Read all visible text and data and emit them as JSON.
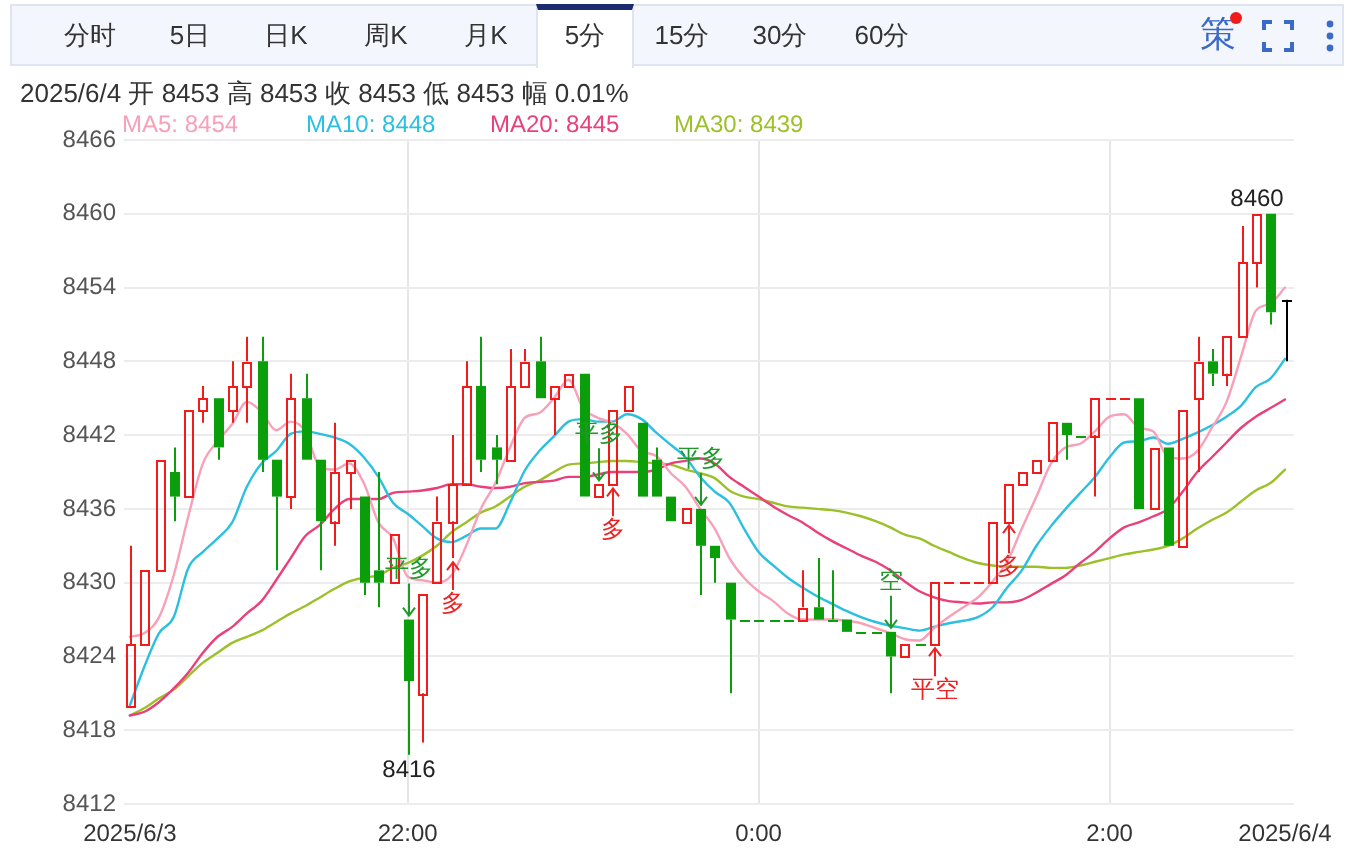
{
  "chart_data": {
    "type": "candlestick",
    "title": "2025/6/4 开 8453 高 8453 收 8453 低 8453 幅 0.01%",
    "x": [
      "2025-06-03T20:25",
      "2025-06-03T20:30",
      "2025-06-03T20:35",
      "2025-06-03T20:40",
      "2025-06-03T20:45",
      "2025-06-03T20:50",
      "2025-06-03T20:55",
      "2025-06-03T21:00",
      "2025-06-03T21:05",
      "2025-06-03T21:10",
      "2025-06-03T21:15",
      "2025-06-03T21:20",
      "2025-06-03T21:25",
      "2025-06-03T21:30",
      "2025-06-03T21:35",
      "2025-06-03T21:40",
      "2025-06-03T21:45",
      "2025-06-03T21:50",
      "2025-06-03T21:55",
      "2025-06-03T22:00",
      "2025-06-03T22:05",
      "2025-06-03T22:10",
      "2025-06-03T22:15",
      "2025-06-03T22:20",
      "2025-06-03T22:25",
      "2025-06-03T22:30",
      "2025-06-03T22:35",
      "2025-06-03T22:40",
      "2025-06-03T22:45",
      "2025-06-03T22:50",
      "2025-06-03T22:55",
      "2025-06-03T23:00",
      "2025-06-03T23:05",
      "2025-06-03T23:10",
      "2025-06-03T23:15",
      "2025-06-03T23:20",
      "2025-06-03T23:25",
      "2025-06-03T23:30",
      "2025-06-03T23:35",
      "2025-06-03T23:40",
      "2025-06-03T23:45",
      "2025-06-03T23:50",
      "2025-06-03T23:55",
      "2025-06-04T00:00",
      "2025-06-04T00:05",
      "2025-06-04T00:10",
      "2025-06-04T00:15",
      "2025-06-04T00:20",
      "2025-06-04T00:25",
      "2025-06-04T00:30",
      "2025-06-04T00:35",
      "2025-06-04T00:40",
      "2025-06-04T00:45",
      "2025-06-04T00:50",
      "2025-06-04T00:55",
      "2025-06-04T01:00",
      "2025-06-04T01:05",
      "2025-06-04T01:10",
      "2025-06-04T01:15",
      "2025-06-04T01:20",
      "2025-06-04T01:25",
      "2025-06-04T01:30",
      "2025-06-04T01:35",
      "2025-06-04T01:40",
      "2025-06-04T01:45",
      "2025-06-04T01:50",
      "2025-06-04T01:55",
      "2025-06-04T02:00",
      "2025-06-04T02:05",
      "2025-06-04T02:10",
      "2025-06-04T02:15",
      "2025-06-04T02:20",
      "2025-06-04T02:25",
      "2025-06-04T02:30",
      "2025-06-04T02:35",
      "2025-06-04T02:40",
      "2025-06-04T02:45",
      "2025-06-04T02:50",
      "2025-06-04T02:55",
      "2025-06-04T03:00"
    ],
    "xlim": [
      "2025-06-03T20:23",
      "2025-06-04T03:03"
    ],
    "xticks": [
      {
        "value": "2025-06-03T20:25",
        "label": "2025/6/3"
      },
      {
        "value": "2025-06-03T22:00",
        "label": "22:00"
      },
      {
        "value": "2025-06-04T00:00",
        "label": "0:00"
      },
      {
        "value": "2025-06-04T02:00",
        "label": "2:00"
      },
      {
        "value": "2025-06-04T03:00",
        "label": "2025/6/4"
      }
    ],
    "ylim": [
      8412,
      8466
    ],
    "yticks": [
      8412,
      8418,
      8424,
      8430,
      8436,
      8442,
      8448,
      8454,
      8460,
      8466
    ],
    "ohlc": [
      [
        8420,
        8433,
        8420,
        8425
      ],
      [
        8425,
        8431,
        8425,
        8431
      ],
      [
        8431,
        8440,
        8431,
        8440
      ],
      [
        8439,
        8441,
        8435,
        8437
      ],
      [
        8437,
        8444,
        8437,
        8444
      ],
      [
        8444,
        8446,
        8443,
        8445
      ],
      [
        8445,
        8445,
        8440,
        8441
      ],
      [
        8444,
        8448,
        8443,
        8446
      ],
      [
        8446,
        8450,
        8443,
        8448
      ],
      [
        8448,
        8450,
        8439,
        8440
      ],
      [
        8440,
        8440,
        8431,
        8437
      ],
      [
        8437,
        8447,
        8436,
        8445
      ],
      [
        8445,
        8447,
        8440,
        8440
      ],
      [
        8440,
        8440,
        8431,
        8435
      ],
      [
        8435,
        8443,
        8433,
        8439
      ],
      [
        8439,
        8440,
        8436,
        8440
      ],
      [
        8437,
        8437,
        8429,
        8430
      ],
      [
        8431,
        8439,
        8428,
        8430
      ],
      [
        8430,
        8434,
        8430,
        8434
      ],
      [
        8427,
        8427,
        8416,
        8422
      ],
      [
        8421,
        8429,
        8417,
        8429
      ],
      [
        8430,
        8437,
        8430,
        8435
      ],
      [
        8435,
        8442,
        8432,
        8438
      ],
      [
        8438,
        8448,
        8438,
        8446
      ],
      [
        8446,
        8450,
        8439,
        8440
      ],
      [
        8441,
        8442,
        8438,
        8440
      ],
      [
        8440,
        8449,
        8440,
        8446
      ],
      [
        8446,
        8449,
        8446,
        8448
      ],
      [
        8448,
        8450,
        8445,
        8445
      ],
      [
        8445,
        8446,
        8442,
        8446
      ],
      [
        8446,
        8447,
        8446,
        8447
      ],
      [
        8447,
        8447,
        8437,
        8437
      ],
      [
        8437,
        8438,
        8437,
        8438
      ],
      [
        8438,
        8444,
        8438,
        8444
      ],
      [
        8444,
        8446,
        8444,
        8446
      ],
      [
        8443,
        8443,
        8437,
        8437
      ],
      [
        8440,
        8441,
        8437,
        8437
      ],
      [
        8437,
        8437,
        8435,
        8435
      ],
      [
        8435,
        8436,
        8435,
        8436
      ],
      [
        8436,
        8436,
        8429,
        8433
      ],
      [
        8433,
        8433,
        8430,
        8432
      ],
      [
        8430,
        8430,
        8421,
        8427
      ],
      [
        8427,
        8427,
        8427,
        8427
      ],
      [
        8427,
        8427,
        8427,
        8427
      ],
      [
        8427,
        8427,
        8427,
        8427
      ],
      [
        8427,
        8427,
        8427,
        8427
      ],
      [
        8427,
        8431,
        8427,
        8428
      ],
      [
        8428,
        8432,
        8427,
        8427
      ],
      [
        8427,
        8431,
        8427,
        8427
      ],
      [
        8427,
        8427,
        8426,
        8426
      ],
      [
        8426,
        8426,
        8426,
        8426
      ],
      [
        8426,
        8426,
        8426,
        8426
      ],
      [
        8426,
        8426,
        8421,
        8424
      ],
      [
        8424,
        8425,
        8424,
        8425
      ],
      [
        8425,
        8425,
        8425,
        8425
      ],
      [
        8425,
        8430,
        8425,
        8430
      ],
      [
        8430,
        8430,
        8430,
        8430
      ],
      [
        8430,
        8430,
        8430,
        8430
      ],
      [
        8430,
        8430,
        8430,
        8430
      ],
      [
        8430,
        8435,
        8430,
        8435
      ],
      [
        8435,
        8438,
        8435,
        8438
      ],
      [
        8438,
        8439,
        8438,
        8439
      ],
      [
        8439,
        8440,
        8439,
        8440
      ],
      [
        8440,
        8443,
        8440,
        8443
      ],
      [
        8443,
        8443,
        8440,
        8442
      ],
      [
        8442,
        8442,
        8442,
        8442
      ],
      [
        8442,
        8445,
        8437,
        8445
      ],
      [
        8445,
        8445,
        8445,
        8445
      ],
      [
        8445,
        8445,
        8445,
        8445
      ],
      [
        8445,
        8445,
        8436,
        8436
      ],
      [
        8436,
        8441,
        8436,
        8441
      ],
      [
        8441,
        8441,
        8433,
        8433
      ],
      [
        8433,
        8444,
        8433,
        8444
      ],
      [
        8445,
        8450,
        8439,
        8448
      ],
      [
        8448,
        8449,
        8446,
        8447
      ],
      [
        8447,
        8450,
        8446,
        8450
      ],
      [
        8450,
        8459,
        8450,
        8456
      ],
      [
        8456,
        8460,
        8454,
        8460
      ],
      [
        8460,
        8460,
        8451,
        8452
      ],
      [
        8453,
        8453,
        8448,
        8453
      ]
    ],
    "colors": [
      "#f21b1b",
      "#f21b1b",
      "#f21b1b",
      "#0a9e0a",
      "#f21b1b",
      "#f21b1b",
      "#0a9e0a",
      "#f21b1b",
      "#f21b1b",
      "#0a9e0a",
      "#0a9e0a",
      "#f21b1b",
      "#0a9e0a",
      "#0a9e0a",
      "#f21b1b",
      "#f21b1b",
      "#0a9e0a",
      "#0a9e0a",
      "#f21b1b",
      "#0a9e0a",
      "#f21b1b",
      "#f21b1b",
      "#f21b1b",
      "#f21b1b",
      "#0a9e0a",
      "#0a9e0a",
      "#f21b1b",
      "#f21b1b",
      "#0a9e0a",
      "#f21b1b",
      "#f21b1b",
      "#0a9e0a",
      "#f21b1b",
      "#f21b1b",
      "#f21b1b",
      "#0a9e0a",
      "#0a9e0a",
      "#0a9e0a",
      "#f21b1b",
      "#0a9e0a",
      "#0a9e0a",
      "#0a9e0a",
      "#0a9e0a",
      "#0a9e0a",
      "#0a9e0a",
      "#0a9e0a",
      "#f21b1b",
      "#0a9e0a",
      "#0a9e0a",
      "#0a9e0a",
      "#0a9e0a",
      "#0a9e0a",
      "#0a9e0a",
      "#f21b1b",
      "#0a9e0a",
      "#f21b1b",
      "#f21b1b",
      "#f21b1b",
      "#f21b1b",
      "#f21b1b",
      "#f21b1b",
      "#f21b1b",
      "#f21b1b",
      "#f21b1b",
      "#0a9e0a",
      "#0a9e0a",
      "#f21b1b",
      "#f21b1b",
      "#f21b1b",
      "#0a9e0a",
      "#f21b1b",
      "#0a9e0a",
      "#f21b1b",
      "#f21b1b",
      "#0a9e0a",
      "#f21b1b",
      "#f21b1b",
      "#f21b1b",
      "#0a9e0a",
      "#000000"
    ],
    "series": [
      {
        "name": "MA5: 8454",
        "type": "line",
        "color": "#f8a0b8",
        "values": [
          8425.6,
          8425.9,
          8427.2,
          8430.6,
          8435.4,
          8439.7,
          8441.5,
          8442.9,
          8444.7,
          8443.9,
          8442.4,
          8443.1,
          8442.3,
          8439.4,
          8439.2,
          8439.7,
          8438.1,
          8434.9,
          8433.6,
          8430.5,
          8430.2,
          8430.0,
          8430.6,
          8433.0,
          8436.0,
          8438.1,
          8441.0,
          8443.4,
          8443.8,
          8445.0,
          8446.5,
          8444.2,
          8443.4,
          8443.0,
          8442.1,
          8440.7,
          8440.3,
          8438.9,
          8437.8,
          8436.0,
          8434.4,
          8432.0,
          8430.4,
          8429.3,
          8428.5,
          8427.5,
          8427.0,
          8427.0,
          8427.0,
          8426.9,
          8426.7,
          8426.3,
          8425.9,
          8425.4,
          8425.3,
          8426.3,
          8427.2,
          8428.0,
          8428.8,
          8430.1,
          8431.7,
          8434.4,
          8437.0,
          8439.7,
          8441.0,
          8441.3,
          8442.3,
          8443.5,
          8443.7,
          8442.6,
          8442.3,
          8440.2,
          8440.1,
          8440.7,
          8442.6,
          8444.7,
          8448.4,
          8452.1,
          8452.7,
          8454.0
        ]
      },
      {
        "name": "MA10: 8448",
        "type": "line",
        "color": "#2bbfe0",
        "values": [
          8420.0,
          8423.2,
          8425.9,
          8427.2,
          8431.2,
          8432.5,
          8433.6,
          8434.9,
          8437.8,
          8439.7,
          8440.7,
          8442.1,
          8442.3,
          8442.1,
          8441.8,
          8441.3,
          8440.2,
          8438.6,
          8436.5,
          8435.6,
          8434.6,
          8433.6,
          8433.3,
          8433.8,
          8434.4,
          8434.4,
          8436.5,
          8439.1,
          8440.7,
          8441.9,
          8443.1,
          8443.3,
          8443.1,
          8443.1,
          8443.7,
          8443.3,
          8442.2,
          8441.2,
          8440.2,
          8438.6,
          8437.4,
          8436.5,
          8434.4,
          8432.5,
          8431.4,
          8430.4,
          8429.6,
          8428.9,
          8428.3,
          8427.7,
          8427.2,
          8426.8,
          8426.5,
          8426.3,
          8426.1,
          8426.4,
          8426.7,
          8426.9,
          8427.2,
          8428.0,
          8429.6,
          8431.0,
          8433.0,
          8434.6,
          8436.0,
          8437.3,
          8438.6,
          8440.2,
          8441.4,
          8441.5,
          8441.8,
          8441.3,
          8441.7,
          8442.2,
          8442.8,
          8443.5,
          8444.4,
          8445.9,
          8446.6,
          8448.2
        ]
      },
      {
        "name": "MA20: 8445",
        "type": "line",
        "color": "#e9407b",
        "values": [
          8419.2,
          8419.5,
          8420.3,
          8421.4,
          8422.7,
          8424.3,
          8425.6,
          8426.4,
          8427.5,
          8428.5,
          8430.2,
          8432.0,
          8433.8,
          8434.7,
          8436.0,
          8436.8,
          8436.8,
          8436.8,
          8437.3,
          8437.4,
          8437.5,
          8437.7,
          8438.0,
          8438.0,
          8437.8,
          8437.7,
          8437.8,
          8438.1,
          8438.2,
          8438.3,
          8438.6,
          8438.6,
          8438.8,
          8439.0,
          8439.0,
          8439.0,
          8439.2,
          8439.7,
          8439.9,
          8440.1,
          8439.7,
          8438.6,
          8437.8,
          8437.0,
          8436.2,
          8435.5,
          8434.9,
          8434.1,
          8433.4,
          8432.8,
          8432.2,
          8431.7,
          8431.0,
          8430.1,
          8429.3,
          8428.8,
          8428.5,
          8428.4,
          8428.3,
          8428.4,
          8428.4,
          8428.6,
          8429.2,
          8429.9,
          8430.6,
          8431.6,
          8432.5,
          8433.6,
          8434.5,
          8434.9,
          8435.4,
          8436.0,
          8437.4,
          8439.0,
          8440.2,
          8441.4,
          8442.6,
          8443.5,
          8444.2,
          8444.9
        ]
      },
      {
        "name": "MA30: 8439",
        "type": "line",
        "color": "#9cc02a",
        "values": [
          8419.2,
          8419.8,
          8420.6,
          8421.3,
          8422.4,
          8423.5,
          8424.3,
          8425.1,
          8425.6,
          8426.1,
          8426.8,
          8427.5,
          8428.1,
          8428.8,
          8429.5,
          8430.1,
          8430.4,
          8430.6,
          8431.2,
          8431.6,
          8432.2,
          8433.0,
          8434.1,
          8434.9,
          8435.7,
          8436.2,
          8437.0,
          8437.8,
          8438.3,
          8439.0,
          8439.6,
          8439.7,
          8439.8,
          8439.9,
          8439.9,
          8439.8,
          8439.7,
          8439.6,
          8439.2,
          8438.9,
          8438.5,
          8437.5,
          8437.0,
          8436.8,
          8436.5,
          8436.2,
          8436.1,
          8436.0,
          8435.9,
          8435.7,
          8435.4,
          8435.0,
          8434.5,
          8433.9,
          8433.6,
          8433.0,
          8432.5,
          8432.0,
          8431.6,
          8431.4,
          8431.3,
          8431.3,
          8431.3,
          8431.2,
          8431.2,
          8431.4,
          8431.7,
          8432.0,
          8432.3,
          8432.5,
          8432.7,
          8433.0,
          8433.6,
          8434.4,
          8435.1,
          8435.7,
          8436.6,
          8437.5,
          8438.1,
          8439.2
        ]
      }
    ],
    "annotations": [
      "分时",
      "5日",
      "日K",
      "周K",
      "月K",
      "5分",
      "15分",
      "30分",
      "60分",
      "策",
      {
        "text": "平多",
        "x": "2025-06-03T22:00",
        "y": 8427
      },
      {
        "text": "多",
        "x": "2025-06-03T22:15",
        "y": 8432
      },
      {
        "text": "平多",
        "x": "2025-06-03T23:05",
        "y": 8438
      },
      {
        "text": "多",
        "x": "2025-06-03T23:10",
        "y": 8438
      },
      {
        "text": "平多",
        "x": "2025-06-03T23:40",
        "y": 8436
      },
      {
        "text": "空",
        "x": "2025-06-04T00:45",
        "y": 8426
      },
      {
        "text": "平空",
        "x": "2025-06-04T01:00",
        "y": 8425
      },
      {
        "text": "多",
        "x": "2025-06-04T01:25",
        "y": 8435
      },
      {
        "text": "8460",
        "x": "2025-06-04T02:50",
        "y": 8460
      },
      {
        "text": "8416",
        "x": "2025-06-03T22:00",
        "y": 8416
      }
    ],
    "grid": true,
    "legend": "top left"
  }
}
